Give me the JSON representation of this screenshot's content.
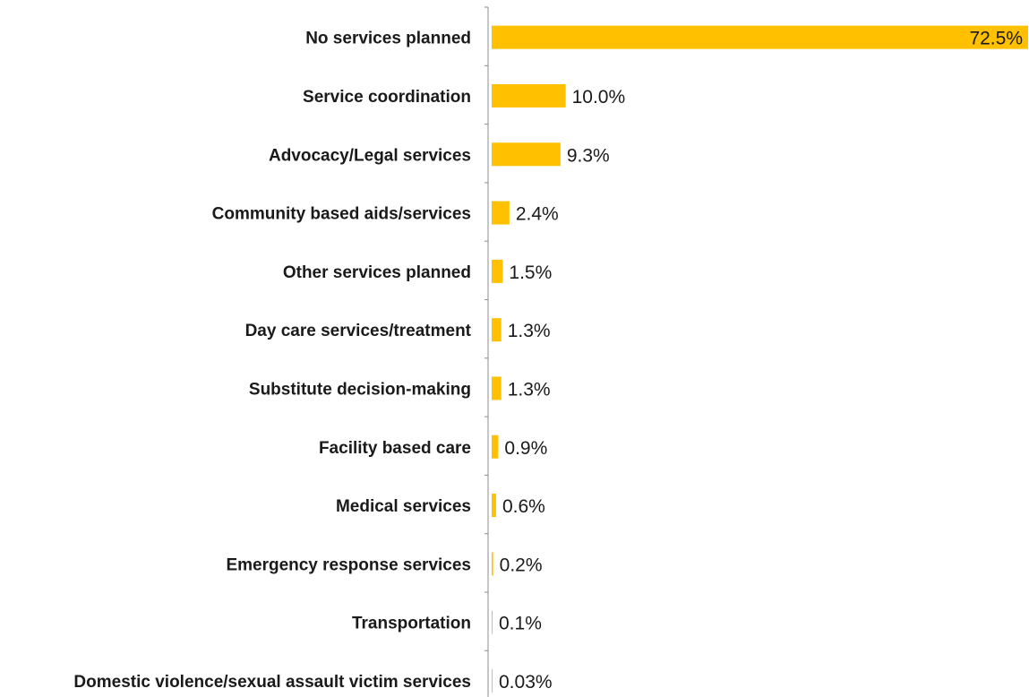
{
  "chart_data": {
    "type": "bar",
    "orientation": "horizontal",
    "categories": [
      "No services planned",
      "Service coordination",
      "Advocacy/Legal services",
      "Community based aids/services",
      "Other services planned",
      "Day care services/treatment",
      "Substitute decision-making",
      "Facility based care",
      "Medical services",
      "Emergency response services",
      "Transportation",
      "Domestic violence/sexual assault victim services"
    ],
    "values": [
      72.5,
      10.0,
      9.3,
      2.4,
      1.5,
      1.3,
      1.3,
      0.9,
      0.6,
      0.2,
      0.1,
      0.03
    ],
    "value_labels": [
      "72.5%",
      "10.0%",
      "9.3%",
      "2.4%",
      "1.5%",
      "1.3%",
      "1.3%",
      "0.9%",
      "0.6%",
      "0.2%",
      "0.1%",
      "0.03%"
    ],
    "bar_color": "#FFC000",
    "xlim": [
      0,
      72.5
    ],
    "grid": false,
    "legend": "none"
  }
}
